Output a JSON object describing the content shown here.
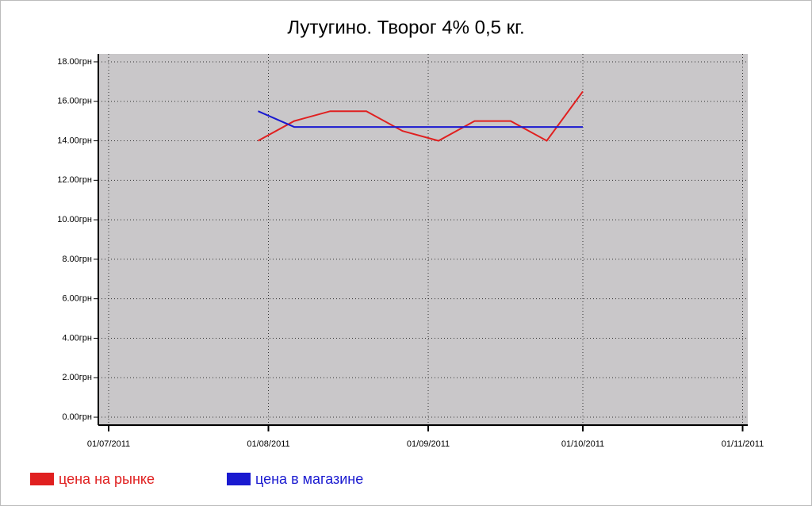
{
  "chart_data": {
    "type": "line",
    "title": "Лутугино. Творог  4%  0,5 кг.",
    "series": [
      {
        "name": "цена на рынке",
        "color": "#e02020",
        "x": [
          "2011-07-30",
          "2011-08-06",
          "2011-08-13",
          "2011-08-20",
          "2011-08-27",
          "2011-09-03",
          "2011-09-10",
          "2011-09-17",
          "2011-09-24",
          "2011-10-01"
        ],
        "values": [
          14.0,
          15.0,
          15.5,
          15.5,
          14.5,
          14.0,
          15.0,
          15.0,
          14.0,
          16.5
        ]
      },
      {
        "name": "цена в магазине",
        "color": "#1a1ad0",
        "x": [
          "2011-07-30",
          "2011-08-06",
          "2011-10-01"
        ],
        "values": [
          15.5,
          14.7,
          14.7
        ]
      }
    ],
    "xlim": [
      "2011-06-29",
      "2011-11-02"
    ],
    "xticks": [
      {
        "value": "2011-07-01",
        "label": "01/07/2011"
      },
      {
        "value": "2011-08-01",
        "label": "01/08/2011"
      },
      {
        "value": "2011-09-01",
        "label": "01/09/2011"
      },
      {
        "value": "2011-10-01",
        "label": "01/10/2011"
      },
      {
        "value": "2011-11-01",
        "label": "01/11/2011"
      }
    ],
    "ylim": [
      -0.4,
      18.4
    ],
    "yticks": [
      {
        "value": 0,
        "label": "0.00грн"
      },
      {
        "value": 2,
        "label": "2.00грн"
      },
      {
        "value": 4,
        "label": "4.00грн"
      },
      {
        "value": 6,
        "label": "6.00грн"
      },
      {
        "value": 8,
        "label": "8.00грн"
      },
      {
        "value": 10,
        "label": "10.00грн"
      },
      {
        "value": 12,
        "label": "12.00грн"
      },
      {
        "value": 14,
        "label": "14.00грн"
      },
      {
        "value": 16,
        "label": "16.00грн"
      },
      {
        "value": 18,
        "label": "18.00грн"
      }
    ],
    "grid": true
  }
}
